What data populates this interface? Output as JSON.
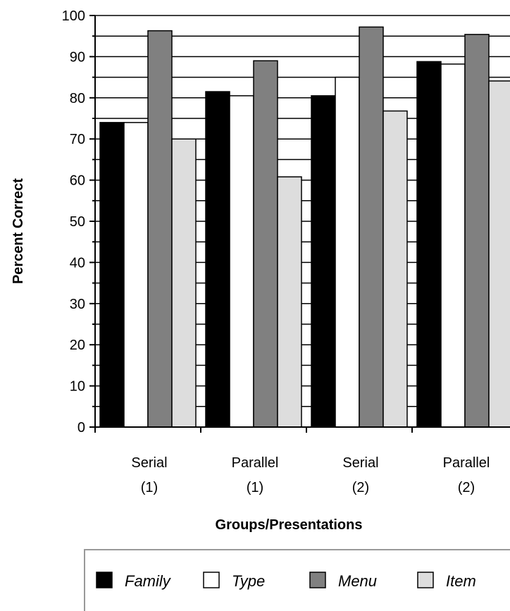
{
  "chart_data": {
    "type": "bar",
    "title": "",
    "xlabel": "Groups/Presentations",
    "ylabel": "Percent Correct",
    "ylim": [
      0,
      100
    ],
    "yticks": [
      0,
      10,
      20,
      30,
      40,
      50,
      60,
      70,
      80,
      90,
      100
    ],
    "grid": true,
    "legend_position": "bottom",
    "categories": [
      [
        "Serial",
        "(1)"
      ],
      [
        "Parallel",
        "(1)"
      ],
      [
        "Serial",
        "(2)"
      ],
      [
        "Parallel",
        "(2)"
      ]
    ],
    "series": [
      {
        "name": "Family",
        "color": "#000000",
        "values": [
          74,
          81.5,
          80.5,
          88.8
        ]
      },
      {
        "name": "Type",
        "color": "#ffffff",
        "values": [
          74,
          80.5,
          85,
          88.2
        ]
      },
      {
        "name": "Menu",
        "color": "#808080",
        "values": [
          96.3,
          89,
          97.2,
          95.4
        ]
      },
      {
        "name": "Item",
        "color": "#dddddd",
        "values": [
          70,
          60.8,
          76.8,
          84.1
        ]
      }
    ]
  }
}
